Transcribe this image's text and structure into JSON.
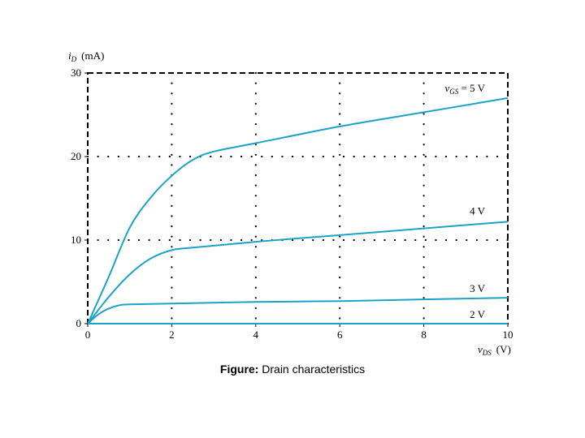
{
  "chart_data": {
    "type": "line",
    "ylabel_var": "i",
    "ylabel_sub": "D",
    "ylabel_unit": "(mA)",
    "xlabel_var": "v",
    "xlabel_sub": "DS",
    "xlabel_unit": "(V)",
    "xlim": [
      0,
      10
    ],
    "ylim": [
      0,
      30
    ],
    "x_ticks": [
      "0",
      "2",
      "4",
      "6",
      "8",
      "10"
    ],
    "y_ticks": [
      "0",
      "10",
      "20",
      "30"
    ],
    "grid": "dotted",
    "curve_color": "#1ba3c6",
    "series": [
      {
        "name": "5 V",
        "label_var": "v",
        "label_sub": "GS",
        "label_text": " = 5 V",
        "x": [
          0,
          0.5,
          1.0,
          1.5,
          2.0,
          2.5,
          3.0,
          4.0,
          6.0,
          8.0,
          10.0
        ],
        "y": [
          0,
          5.6,
          11.5,
          15.1,
          17.7,
          19.6,
          20.6,
          21.6,
          23.6,
          25.3,
          27.0
        ]
      },
      {
        "name": "4 V",
        "label_text": "4 V",
        "x": [
          0,
          0.5,
          1.0,
          1.5,
          2.0,
          2.5,
          4.0,
          6.0,
          8.0,
          10.0
        ],
        "y": [
          0,
          3.2,
          5.9,
          7.8,
          8.8,
          9.1,
          9.8,
          10.6,
          11.4,
          12.2
        ]
      },
      {
        "name": "3 V",
        "label_text": "3 V",
        "x": [
          0,
          0.25,
          0.5,
          0.75,
          1.0,
          2.0,
          4.0,
          6.0,
          8.0,
          10.0
        ],
        "y": [
          0,
          1.1,
          1.8,
          2.2,
          2.3,
          2.4,
          2.6,
          2.7,
          2.9,
          3.1
        ]
      },
      {
        "name": "2 V",
        "label_text": "2 V",
        "x": [
          0,
          10
        ],
        "y": [
          0,
          0
        ]
      }
    ]
  },
  "caption": {
    "prefix": "Figure:",
    "text": " Drain characteristics"
  }
}
